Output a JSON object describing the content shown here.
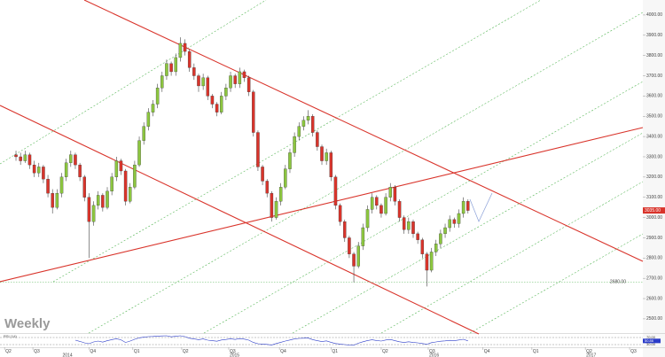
{
  "chart_data": {
    "type": "candlestick",
    "title": "Weekly",
    "ylim": [
      2434,
      4074
    ],
    "yticks": [
      {
        "value": 2500,
        "label": "2500.00"
      },
      {
        "value": 2600,
        "label": "2600.00"
      },
      {
        "value": 2700,
        "label": "2700.00"
      },
      {
        "value": 2800,
        "label": "2800.00"
      },
      {
        "value": 2900,
        "label": "2900.00"
      },
      {
        "value": 3000,
        "label": "3000.00"
      },
      {
        "value": 3100,
        "label": "3100.00"
      },
      {
        "value": 3200,
        "label": "3200.00"
      },
      {
        "value": 3300,
        "label": "3300.00"
      },
      {
        "value": 3400,
        "label": "3400.00"
      },
      {
        "value": 3500,
        "label": "3500.00"
      },
      {
        "value": 3600,
        "label": "3600.00"
      },
      {
        "value": 3700,
        "label": "3700.00"
      },
      {
        "value": 3800,
        "label": "3800.00"
      },
      {
        "value": 3900,
        "label": "3900.00"
      },
      {
        "value": 4000,
        "label": "4000.00"
      }
    ],
    "xlim": [
      -3.5,
      137.3
    ],
    "xticks": [
      {
        "value": -2.5,
        "label": "Q2"
      },
      {
        "value": 3.7,
        "label": "Q3"
      },
      {
        "value": 16,
        "label": "Q4"
      },
      {
        "value": 25.6,
        "label": "Q1"
      },
      {
        "value": 36.3,
        "label": "Q2"
      },
      {
        "value": 46.6,
        "label": "Q3"
      },
      {
        "value": 57.7,
        "label": "Q4"
      },
      {
        "value": 69,
        "label": "Q1"
      },
      {
        "value": 80,
        "label": "Q2"
      },
      {
        "value": 90.3,
        "label": "Q3"
      },
      {
        "value": 102.3,
        "label": "Q4"
      },
      {
        "value": 113,
        "label": "Q1"
      },
      {
        "value": 124.7,
        "label": "Q2"
      },
      {
        "value": 134.4,
        "label": "Q3"
      }
    ],
    "year_ticks": [
      {
        "value": 10,
        "label": "2014"
      },
      {
        "value": 46.6,
        "label": "2015"
      },
      {
        "value": 90.3,
        "label": "2016"
      },
      {
        "value": 124.7,
        "label": "2017"
      }
    ],
    "up_color": "#8cc63f",
    "down_color": "#d9342b",
    "last_price": {
      "value": 3035,
      "label": "3035.00",
      "color": "#d9342b"
    },
    "support_level": {
      "value": 2680,
      "label": "2680.00",
      "color": "#5cb85c"
    },
    "ohlc": [
      [
        3310,
        3330,
        3280,
        3300
      ],
      [
        3300,
        3320,
        3260,
        3280
      ],
      [
        3280,
        3330,
        3270,
        3310
      ],
      [
        3310,
        3320,
        3240,
        3260
      ],
      [
        3260,
        3280,
        3200,
        3220
      ],
      [
        3220,
        3270,
        3200,
        3250
      ],
      [
        3250,
        3260,
        3170,
        3190
      ],
      [
        3190,
        3210,
        3100,
        3120
      ],
      [
        3120,
        3140,
        3020,
        3050
      ],
      [
        3050,
        3140,
        3040,
        3120
      ],
      [
        3120,
        3220,
        3100,
        3200
      ],
      [
        3200,
        3290,
        3180,
        3270
      ],
      [
        3270,
        3330,
        3250,
        3310
      ],
      [
        3310,
        3320,
        3240,
        3260
      ],
      [
        3260,
        3270,
        3180,
        3200
      ],
      [
        3200,
        3210,
        3080,
        3100
      ],
      [
        3100,
        3120,
        2800,
        2980
      ],
      [
        2980,
        3080,
        2960,
        3060
      ],
      [
        3060,
        3130,
        3040,
        3110
      ],
      [
        3110,
        3120,
        3030,
        3050
      ],
      [
        3050,
        3150,
        3040,
        3130
      ],
      [
        3130,
        3220,
        3110,
        3200
      ],
      [
        3200,
        3300,
        3180,
        3280
      ],
      [
        3280,
        3290,
        3210,
        3230
      ],
      [
        3230,
        3240,
        3060,
        3080
      ],
      [
        3080,
        3170,
        3070,
        3150
      ],
      [
        3150,
        3280,
        3140,
        3260
      ],
      [
        3260,
        3400,
        3250,
        3380
      ],
      [
        3380,
        3470,
        3360,
        3450
      ],
      [
        3450,
        3540,
        3430,
        3520
      ],
      [
        3520,
        3580,
        3500,
        3560
      ],
      [
        3560,
        3660,
        3540,
        3640
      ],
      [
        3640,
        3720,
        3620,
        3700
      ],
      [
        3700,
        3780,
        3680,
        3760
      ],
      [
        3760,
        3770,
        3700,
        3720
      ],
      [
        3720,
        3810,
        3700,
        3790
      ],
      [
        3790,
        3890,
        3770,
        3860
      ],
      [
        3860,
        3880,
        3800,
        3820
      ],
      [
        3820,
        3830,
        3720,
        3740
      ],
      [
        3740,
        3760,
        3680,
        3700
      ],
      [
        3700,
        3710,
        3620,
        3650
      ],
      [
        3650,
        3710,
        3630,
        3690
      ],
      [
        3690,
        3700,
        3580,
        3600
      ],
      [
        3600,
        3610,
        3540,
        3560
      ],
      [
        3560,
        3570,
        3500,
        3520
      ],
      [
        3520,
        3620,
        3510,
        3600
      ],
      [
        3600,
        3660,
        3580,
        3640
      ],
      [
        3640,
        3720,
        3620,
        3700
      ],
      [
        3700,
        3710,
        3640,
        3660
      ],
      [
        3660,
        3740,
        3640,
        3720
      ],
      [
        3720,
        3730,
        3670,
        3690
      ],
      [
        3690,
        3700,
        3600,
        3620
      ],
      [
        3620,
        3630,
        3400,
        3420
      ],
      [
        3420,
        3430,
        3230,
        3250
      ],
      [
        3250,
        3260,
        3160,
        3180
      ],
      [
        3180,
        3190,
        3100,
        3120
      ],
      [
        3120,
        3130,
        2980,
        3000
      ],
      [
        3000,
        3100,
        2990,
        3080
      ],
      [
        3080,
        3170,
        3060,
        3150
      ],
      [
        3150,
        3260,
        3140,
        3240
      ],
      [
        3240,
        3340,
        3220,
        3320
      ],
      [
        3320,
        3420,
        3300,
        3400
      ],
      [
        3400,
        3470,
        3380,
        3450
      ],
      [
        3450,
        3500,
        3430,
        3480
      ],
      [
        3480,
        3530,
        3460,
        3500
      ],
      [
        3500,
        3510,
        3400,
        3420
      ],
      [
        3420,
        3430,
        3330,
        3350
      ],
      [
        3350,
        3360,
        3260,
        3280
      ],
      [
        3280,
        3340,
        3260,
        3320
      ],
      [
        3320,
        3330,
        3180,
        3200
      ],
      [
        3200,
        3210,
        3040,
        3060
      ],
      [
        3060,
        3070,
        2960,
        2980
      ],
      [
        2980,
        2990,
        2880,
        2900
      ],
      [
        2900,
        2910,
        2800,
        2820
      ],
      [
        2820,
        2830,
        2680,
        2760
      ],
      [
        2760,
        2880,
        2750,
        2860
      ],
      [
        2860,
        2970,
        2840,
        2950
      ],
      [
        2950,
        3060,
        2930,
        3040
      ],
      [
        3040,
        3120,
        3020,
        3100
      ],
      [
        3100,
        3110,
        3040,
        3060
      ],
      [
        3060,
        3070,
        3000,
        3020
      ],
      [
        3020,
        3120,
        3010,
        3100
      ],
      [
        3100,
        3170,
        3080,
        3150
      ],
      [
        3150,
        3160,
        3060,
        3080
      ],
      [
        3080,
        3090,
        2980,
        3000
      ],
      [
        3000,
        3010,
        2920,
        2940
      ],
      [
        2940,
        3000,
        2920,
        2980
      ],
      [
        2980,
        2990,
        2900,
        2920
      ],
      [
        2920,
        2930,
        2870,
        2890
      ],
      [
        2890,
        2900,
        2800,
        2820
      ],
      [
        2820,
        2830,
        2660,
        2740
      ],
      [
        2740,
        2850,
        2730,
        2830
      ],
      [
        2830,
        2890,
        2810,
        2870
      ],
      [
        2870,
        2940,
        2850,
        2920
      ],
      [
        2920,
        2970,
        2900,
        2950
      ],
      [
        2950,
        3010,
        2930,
        2990
      ],
      [
        2990,
        3000,
        2950,
        2970
      ],
      [
        2970,
        3040,
        2950,
        3020
      ],
      [
        3020,
        3100,
        3000,
        3080
      ],
      [
        3080,
        3090,
        3020,
        3035
      ]
    ],
    "rsi": {
      "name": "RSI (14)",
      "color": "#2b3cc9",
      "ylim": [
        20,
        85
      ],
      "levels": [
        {
          "value": 70,
          "label": "70.00"
        },
        {
          "value": 30,
          "label": "30.00"
        }
      ],
      "values": [
        null,
        null,
        null,
        null,
        null,
        null,
        null,
        null,
        null,
        null,
        null,
        null,
        null,
        55,
        48,
        40,
        35,
        45,
        50,
        44,
        52,
        58,
        63,
        57,
        42,
        50,
        60,
        68,
        72,
        75,
        76,
        78,
        79,
        80,
        74,
        77,
        80,
        75,
        66,
        62,
        58,
        62,
        55,
        52,
        49,
        56,
        59,
        63,
        59,
        64,
        61,
        55,
        42,
        35,
        33,
        31,
        28,
        36,
        43,
        50,
        56,
        62,
        65,
        66,
        67,
        58,
        52,
        47,
        51,
        43,
        36,
        33,
        30,
        28,
        27,
        38,
        46,
        53,
        57,
        53,
        50,
        56,
        59,
        52,
        46,
        42,
        46,
        42,
        40,
        36,
        32,
        41,
        45,
        49,
        51,
        54,
        52,
        56,
        60,
        50.86
      ]
    }
  }
}
